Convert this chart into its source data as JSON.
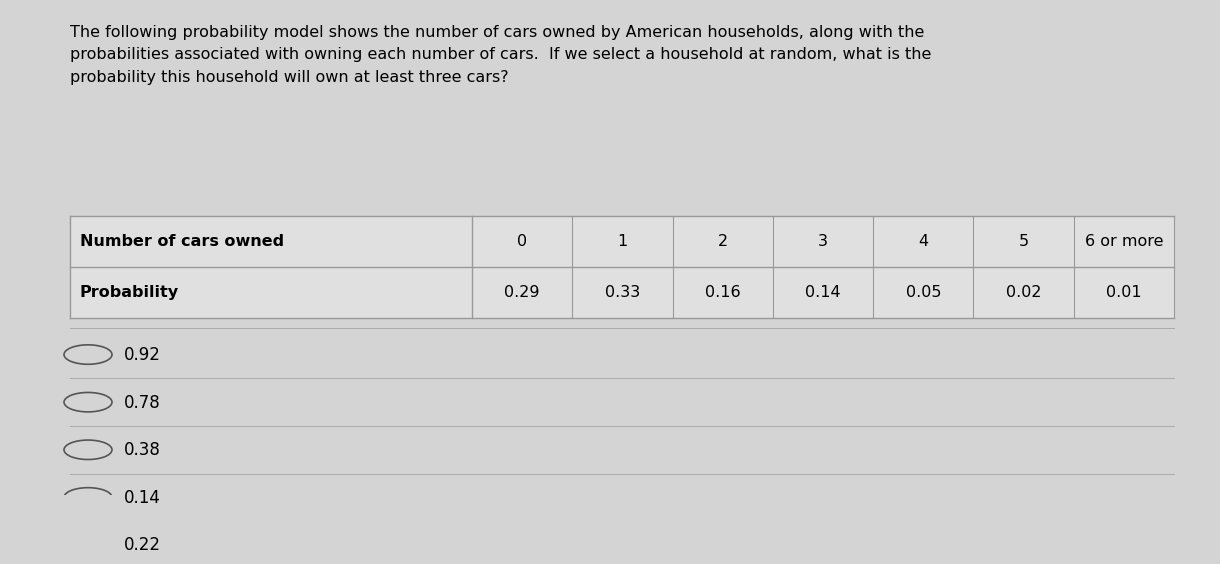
{
  "title_text": "The following probability model shows the number of cars owned by American households, along with the\nprobabilities associated with owning each number of cars.  If we select a household at random, what is the\nprobability this household will own at least three cars?",
  "table_headers_row1": [
    "Number of cars owned",
    "0",
    "1",
    "2",
    "3",
    "4",
    "5",
    "6 or more"
  ],
  "table_headers_row2": [
    "Probability",
    "0.29",
    "0.33",
    "0.16",
    "0.14",
    "0.05",
    "0.02",
    "0.01"
  ],
  "options": [
    "0.92",
    "0.78",
    "0.38",
    "0.14",
    "0.22"
  ],
  "selected_option": "0.22",
  "bg_color": "#d4d4d4",
  "table_bg_color": "#e0e0e0",
  "title_fontsize": 11.5,
  "option_fontsize": 12,
  "table_fontsize": 11.5
}
